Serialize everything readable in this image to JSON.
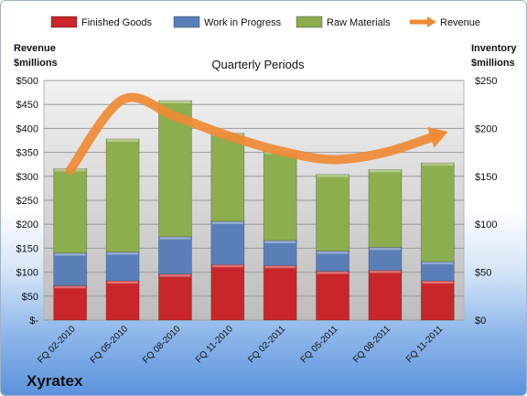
{
  "company": "Xyratex",
  "chart_data": {
    "type": "bar",
    "stacked": true,
    "title": "Quarterly Periods",
    "ylabel": "Revenue $millions",
    "ylabel_lines": [
      "Revenue",
      "$millions"
    ],
    "y2label": "Inventory $millions",
    "y2label_lines": [
      "Inventory",
      "$millions"
    ],
    "ylim": [
      0,
      500
    ],
    "y2lim": [
      0,
      250
    ],
    "yticks": [
      "$-",
      "$50",
      "$100",
      "$150",
      "$200",
      "$250",
      "$300",
      "$350",
      "$400",
      "$450",
      "$500"
    ],
    "y2ticks": [
      "$0",
      "$50",
      "$100",
      "$150",
      "$200",
      "$250"
    ],
    "categories": [
      "FQ 02-2010",
      "FQ 05-2010",
      "FQ 08-2010",
      "FQ 11-2010",
      "FQ 02-2011",
      "FQ 05-2011",
      "FQ 08-2011",
      "FQ 11-2011"
    ],
    "legend_position": "top",
    "grid": true,
    "series": [
      {
        "name": "Finished Goods",
        "axis": "right",
        "color": "#c8262b",
        "values": [
          36,
          41,
          48,
          58,
          57,
          51,
          52,
          41
        ]
      },
      {
        "name": "Work in Progress",
        "axis": "right",
        "color": "#5a7fb8",
        "values": [
          34,
          30,
          39,
          45,
          26,
          21,
          24,
          20
        ]
      },
      {
        "name": "Raw Materials",
        "axis": "right",
        "color": "#8cae4f",
        "values": [
          88,
          118,
          142,
          92,
          93,
          80,
          81,
          103
        ]
      },
      {
        "name": "Revenue",
        "axis": "left",
        "type": "line",
        "color": "#ef8a35",
        "values": [
          313,
          460,
          425,
          385,
          353,
          335,
          350,
          386
        ]
      }
    ]
  }
}
